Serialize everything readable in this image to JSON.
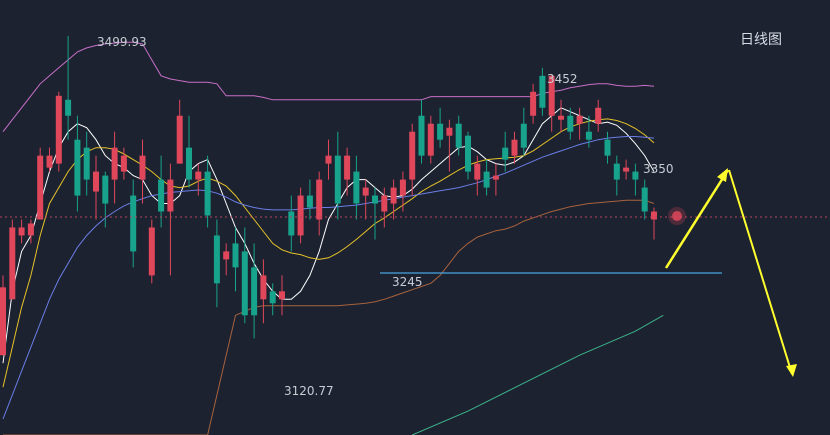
{
  "chart_data": {
    "type": "candlestick",
    "title": "日线图",
    "annotations": {
      "high_label": "3499.93",
      "low_label": "3120.77",
      "peak_label": "3452",
      "level_label": "3350",
      "support_label": "3245"
    },
    "candles": [
      {
        "o": 3100,
        "h": 3200,
        "l": 3100,
        "c": 3185,
        "d": "up"
      },
      {
        "o": 3170,
        "h": 3270,
        "l": 3170,
        "c": 3260,
        "d": "up"
      },
      {
        "o": 3250,
        "h": 3270,
        "l": 3240,
        "c": 3260,
        "d": "up"
      },
      {
        "o": 3250,
        "h": 3270,
        "l": 3240,
        "c": 3265,
        "d": "up"
      },
      {
        "o": 3270,
        "h": 3360,
        "l": 3270,
        "c": 3350,
        "d": "up"
      },
      {
        "o": 3335,
        "h": 3360,
        "l": 3330,
        "c": 3350,
        "d": "up"
      },
      {
        "o": 3340,
        "h": 3430,
        "l": 3330,
        "c": 3425,
        "d": "up"
      },
      {
        "o": 3400,
        "h": 3500,
        "l": 3370,
        "c": 3420,
        "d": "down"
      },
      {
        "o": 3370,
        "h": 3400,
        "l": 3280,
        "c": 3300,
        "d": "down"
      },
      {
        "o": 3360,
        "h": 3380,
        "l": 3300,
        "c": 3320,
        "d": "down"
      },
      {
        "o": 3305,
        "h": 3350,
        "l": 3270,
        "c": 3330,
        "d": "up"
      },
      {
        "o": 3325,
        "h": 3330,
        "l": 3260,
        "c": 3290,
        "d": "down"
      },
      {
        "o": 3320,
        "h": 3380,
        "l": 3290,
        "c": 3360,
        "d": "up"
      },
      {
        "o": 3330,
        "h": 3360,
        "l": 3320,
        "c": 3350,
        "d": "up"
      },
      {
        "o": 3300,
        "h": 3320,
        "l": 3210,
        "c": 3230,
        "d": "down"
      },
      {
        "o": 3320,
        "h": 3370,
        "l": 3290,
        "c": 3350,
        "d": "up"
      },
      {
        "o": 3200,
        "h": 3270,
        "l": 3190,
        "c": 3260,
        "d": "up"
      },
      {
        "o": 3320,
        "h": 3350,
        "l": 3260,
        "c": 3280,
        "d": "down"
      },
      {
        "o": 3280,
        "h": 3340,
        "l": 3200,
        "c": 3320,
        "d": "up"
      },
      {
        "o": 3340,
        "h": 3420,
        "l": 3340,
        "c": 3400,
        "d": "up"
      },
      {
        "o": 3360,
        "h": 3400,
        "l": 3310,
        "c": 3320,
        "d": "down"
      },
      {
        "o": 3320,
        "h": 3340,
        "l": 3300,
        "c": 3330,
        "d": "up"
      },
      {
        "o": 3330,
        "h": 3350,
        "l": 3260,
        "c": 3275,
        "d": "down"
      },
      {
        "o": 3250,
        "h": 3270,
        "l": 3160,
        "c": 3190,
        "d": "down"
      },
      {
        "o": 3220,
        "h": 3240,
        "l": 3200,
        "c": 3230,
        "d": "up"
      },
      {
        "o": 3240,
        "h": 3260,
        "l": 3180,
        "c": 3210,
        "d": "down"
      },
      {
        "o": 3230,
        "h": 3260,
        "l": 3140,
        "c": 3150,
        "d": "down"
      },
      {
        "o": 3210,
        "h": 3240,
        "l": 3121,
        "c": 3150,
        "d": "down"
      },
      {
        "o": 3200,
        "h": 3220,
        "l": 3140,
        "c": 3170,
        "d": "up"
      },
      {
        "o": 3180,
        "h": 3190,
        "l": 3150,
        "c": 3165,
        "d": "down"
      },
      {
        "o": 3180,
        "h": 3200,
        "l": 3150,
        "c": 3170,
        "d": "up"
      },
      {
        "o": 3280,
        "h": 3300,
        "l": 3230,
        "c": 3250,
        "d": "down"
      },
      {
        "o": 3250,
        "h": 3310,
        "l": 3240,
        "c": 3300,
        "d": "up"
      },
      {
        "o": 3300,
        "h": 3320,
        "l": 3270,
        "c": 3285,
        "d": "down"
      },
      {
        "o": 3270,
        "h": 3330,
        "l": 3250,
        "c": 3320,
        "d": "up"
      },
      {
        "o": 3350,
        "h": 3370,
        "l": 3320,
        "c": 3340,
        "d": "up"
      },
      {
        "o": 3350,
        "h": 3380,
        "l": 3270,
        "c": 3290,
        "d": "down"
      },
      {
        "o": 3320,
        "h": 3360,
        "l": 3300,
        "c": 3350,
        "d": "up"
      },
      {
        "o": 3330,
        "h": 3350,
        "l": 3270,
        "c": 3290,
        "d": "down"
      },
      {
        "o": 3300,
        "h": 3320,
        "l": 3270,
        "c": 3310,
        "d": "up"
      },
      {
        "o": 3290,
        "h": 3310,
        "l": 3245,
        "c": 3300,
        "d": "down"
      },
      {
        "o": 3280,
        "h": 3310,
        "l": 3260,
        "c": 3300,
        "d": "up"
      },
      {
        "o": 3290,
        "h": 3320,
        "l": 3270,
        "c": 3310,
        "d": "up"
      },
      {
        "o": 3300,
        "h": 3330,
        "l": 3280,
        "c": 3320,
        "d": "up"
      },
      {
        "o": 3320,
        "h": 3390,
        "l": 3300,
        "c": 3380,
        "d": "up"
      },
      {
        "o": 3400,
        "h": 3420,
        "l": 3340,
        "c": 3350,
        "d": "down"
      },
      {
        "o": 3350,
        "h": 3400,
        "l": 3340,
        "c": 3390,
        "d": "up"
      },
      {
        "o": 3390,
        "h": 3410,
        "l": 3360,
        "c": 3370,
        "d": "down"
      },
      {
        "o": 3375,
        "h": 3395,
        "l": 3330,
        "c": 3385,
        "d": "up"
      },
      {
        "o": 3390,
        "h": 3400,
        "l": 3350,
        "c": 3360,
        "d": "down"
      },
      {
        "o": 3375,
        "h": 3380,
        "l": 3320,
        "c": 3330,
        "d": "down"
      },
      {
        "o": 3320,
        "h": 3350,
        "l": 3300,
        "c": 3340,
        "d": "up"
      },
      {
        "o": 3330,
        "h": 3345,
        "l": 3300,
        "c": 3310,
        "d": "down"
      },
      {
        "o": 3320,
        "h": 3340,
        "l": 3300,
        "c": 3325,
        "d": "up"
      },
      {
        "o": 3360,
        "h": 3380,
        "l": 3330,
        "c": 3345,
        "d": "down"
      },
      {
        "o": 3350,
        "h": 3380,
        "l": 3340,
        "c": 3370,
        "d": "up"
      },
      {
        "o": 3390,
        "h": 3410,
        "l": 3350,
        "c": 3360,
        "d": "down"
      },
      {
        "o": 3400,
        "h": 3440,
        "l": 3390,
        "c": 3430,
        "d": "up"
      },
      {
        "o": 3450,
        "h": 3460,
        "l": 3400,
        "c": 3410,
        "d": "down"
      },
      {
        "o": 3400,
        "h": 3452,
        "l": 3380,
        "c": 3450,
        "d": "up"
      },
      {
        "o": 3400,
        "h": 3420,
        "l": 3380,
        "c": 3395,
        "d": "up"
      },
      {
        "o": 3400,
        "h": 3410,
        "l": 3370,
        "c": 3380,
        "d": "down"
      },
      {
        "o": 3390,
        "h": 3410,
        "l": 3370,
        "c": 3400,
        "d": "up"
      },
      {
        "o": 3380,
        "h": 3400,
        "l": 3360,
        "c": 3370,
        "d": "down"
      },
      {
        "o": 3390,
        "h": 3420,
        "l": 3380,
        "c": 3410,
        "d": "up"
      },
      {
        "o": 3370,
        "h": 3380,
        "l": 3340,
        "c": 3350,
        "d": "down"
      },
      {
        "o": 3340,
        "h": 3350,
        "l": 3300,
        "c": 3320,
        "d": "down"
      },
      {
        "o": 3335,
        "h": 3345,
        "l": 3320,
        "c": 3330,
        "d": "up"
      },
      {
        "o": 3330,
        "h": 3340,
        "l": 3300,
        "c": 3320,
        "d": "down"
      },
      {
        "o": 3310,
        "h": 3320,
        "l": 3270,
        "c": 3280,
        "d": "down"
      },
      {
        "o": 3270,
        "h": 3285,
        "l": 3245,
        "c": 3280,
        "d": "up"
      }
    ],
    "ma_lines": [
      {
        "name": "MA5",
        "color": "#ffffff",
        "values": [
          3090,
          3180,
          3230,
          3250,
          3290,
          3330,
          3360,
          3380,
          3390,
          3385,
          3370,
          3350,
          3340,
          3335,
          3325,
          3320,
          3300,
          3290,
          3290,
          3300,
          3330,
          3340,
          3345,
          3320,
          3290,
          3260,
          3240,
          3215,
          3195,
          3180,
          3170,
          3170,
          3180,
          3200,
          3230,
          3270,
          3290,
          3310,
          3320,
          3320,
          3310,
          3300,
          3298,
          3300,
          3308,
          3320,
          3330,
          3340,
          3350,
          3360,
          3362,
          3355,
          3345,
          3340,
          3338,
          3342,
          3350,
          3370,
          3390,
          3400,
          3410,
          3405,
          3400,
          3395,
          3390,
          3392,
          3388,
          3378,
          3365,
          3350,
          3330
        ]
      },
      {
        "name": "MA10",
        "color": "#e6c229",
        "values": [
          3060,
          3110,
          3160,
          3200,
          3250,
          3290,
          3310,
          3330,
          3345,
          3355,
          3360,
          3360,
          3358,
          3352,
          3345,
          3338,
          3330,
          3320,
          3312,
          3310,
          3312,
          3318,
          3322,
          3318,
          3312,
          3300,
          3285,
          3270,
          3255,
          3240,
          3232,
          3228,
          3226,
          3222,
          3220,
          3222,
          3228,
          3236,
          3245,
          3255,
          3265,
          3272,
          3280,
          3288,
          3296,
          3305,
          3312,
          3318,
          3325,
          3332,
          3338,
          3342,
          3345,
          3346,
          3347,
          3348,
          3350,
          3356,
          3364,
          3372,
          3380,
          3386,
          3390,
          3393,
          3395,
          3396,
          3394,
          3390,
          3384,
          3376,
          3366
        ]
      },
      {
        "name": "MA20",
        "color": "#6a7ee6",
        "values": [
          3020,
          3050,
          3080,
          3110,
          3140,
          3170,
          3195,
          3215,
          3235,
          3250,
          3262,
          3272,
          3280,
          3287,
          3292,
          3296,
          3300,
          3302,
          3304,
          3305,
          3306,
          3307,
          3306,
          3303,
          3298,
          3292,
          3288,
          3285,
          3283,
          3282,
          3282,
          3282,
          3283,
          3284,
          3285,
          3285,
          3286,
          3287,
          3288,
          3290,
          3292,
          3294,
          3296,
          3298,
          3300,
          3302,
          3304,
          3306,
          3308,
          3310,
          3313,
          3316,
          3320,
          3324,
          3328,
          3333,
          3338,
          3343,
          3348,
          3352,
          3356,
          3360,
          3364,
          3367,
          3370,
          3372,
          3373,
          3374,
          3374,
          3373,
          3372
        ]
      }
    ],
    "bollinger": {
      "upper_color": "#c86fc8",
      "lower_color": "#a8623e",
      "upper": [
        3380,
        3395,
        3410,
        3425,
        3440,
        3450,
        3460,
        3470,
        3480,
        3485,
        3488,
        3490,
        3491,
        3492,
        3492,
        3490,
        3470,
        3450,
        3446,
        3444,
        3442,
        3442,
        3442,
        3440,
        3425,
        3425,
        3425,
        3425,
        3423,
        3420,
        3420,
        3420,
        3420,
        3420,
        3420,
        3420,
        3420,
        3420,
        3420,
        3420,
        3420,
        3420,
        3420,
        3420,
        3420,
        3420,
        3424,
        3424,
        3424,
        3424,
        3424,
        3424,
        3424,
        3424,
        3424,
        3424,
        3424,
        3424,
        3428,
        3430,
        3432,
        3435,
        3437,
        3439,
        3440,
        3440,
        3438,
        3437,
        3437,
        3438,
        3437
      ],
      "lower": [
        3000,
        3000,
        3000,
        3000,
        3000,
        3000,
        3000,
        3000,
        3000,
        3000,
        3000,
        3000,
        3000,
        3000,
        3000,
        3000,
        3000,
        3000,
        3000,
        3000,
        3000,
        3000,
        3000,
        3050,
        3100,
        3150,
        3155,
        3160,
        3162,
        3162,
        3162,
        3162,
        3162,
        3162,
        3162,
        3162,
        3162,
        3163,
        3164,
        3165,
        3167,
        3170,
        3174,
        3178,
        3182,
        3186,
        3190,
        3200,
        3215,
        3230,
        3240,
        3248,
        3252,
        3256,
        3258,
        3262,
        3268,
        3272,
        3276,
        3280,
        3283,
        3286,
        3288,
        3290,
        3291,
        3292,
        3293,
        3294,
        3294,
        3294,
        3290
      ]
    },
    "ma_long": {
      "color": "#3db38a",
      "points": [
        [
          44,
          3000
        ],
        [
          50,
          3030
        ],
        [
          56,
          3065
        ],
        [
          62,
          3100
        ],
        [
          68,
          3130
        ],
        [
          71,
          3150
        ]
      ]
    },
    "ylim": [
      3000,
      3545
    ],
    "colors": {
      "up": "#e0475b",
      "down": "#18a38c",
      "dashed": "#b8475b",
      "support": "#4aa3e0",
      "arrow": "#ffff2e",
      "dot": "#e0475b"
    }
  }
}
